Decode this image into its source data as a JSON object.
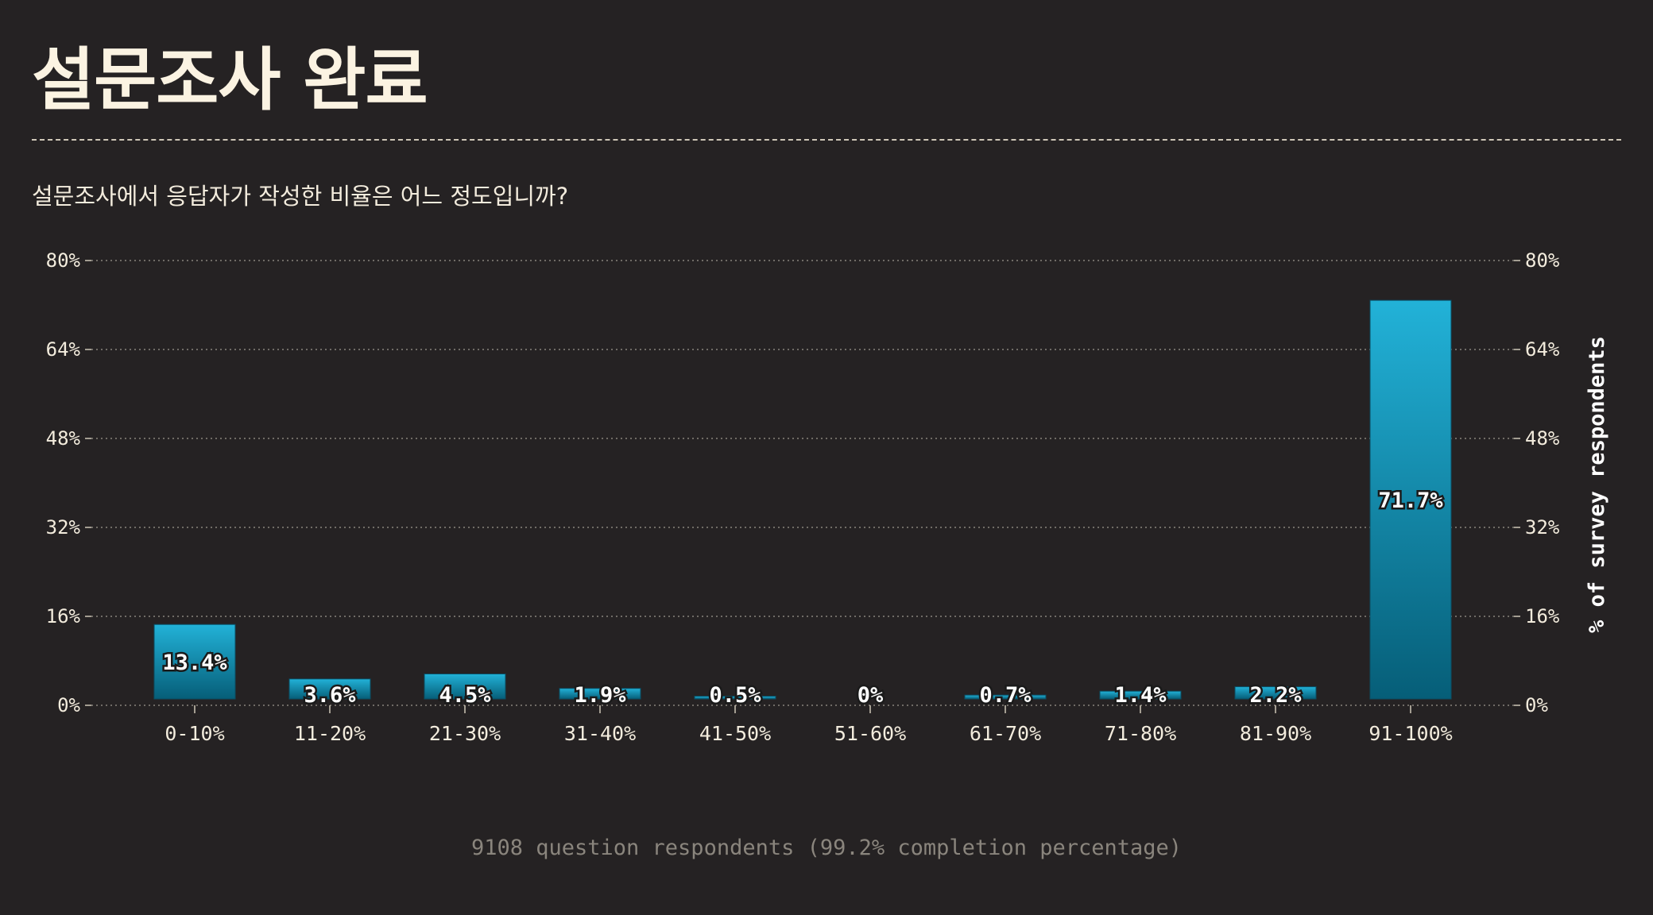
{
  "title": "설문조사 완료",
  "question": "설문조사에서 응답자가 작성한 비율은 어느 정도입니까?",
  "footnote": "9108 question respondents (99.2% completion percentage)",
  "colors": {
    "background": "#252223",
    "bar_top": "#22b2d8",
    "bar_bottom": "#065e78",
    "grid": "#8a857d"
  },
  "chart_data": {
    "type": "bar",
    "categories": [
      "0-10%",
      "11-20%",
      "21-30%",
      "31-40%",
      "41-50%",
      "51-60%",
      "61-70%",
      "71-80%",
      "81-90%",
      "91-100%"
    ],
    "values": [
      13.4,
      3.6,
      4.5,
      1.9,
      0.5,
      0,
      0.7,
      1.4,
      2.2,
      71.7
    ],
    "value_labels": [
      "13.4%",
      "3.6%",
      "4.5%",
      "1.9%",
      "0.5%",
      "0%",
      "0.7%",
      "1.4%",
      "2.2%",
      "71.7%"
    ],
    "ylim": [
      0,
      80
    ],
    "yticks": [
      0,
      16,
      32,
      48,
      64,
      80
    ],
    "ytick_labels": [
      "0%",
      "16%",
      "32%",
      "48%",
      "64%",
      "80%"
    ],
    "ylabel": "% of survey respondents",
    "grid": true
  }
}
